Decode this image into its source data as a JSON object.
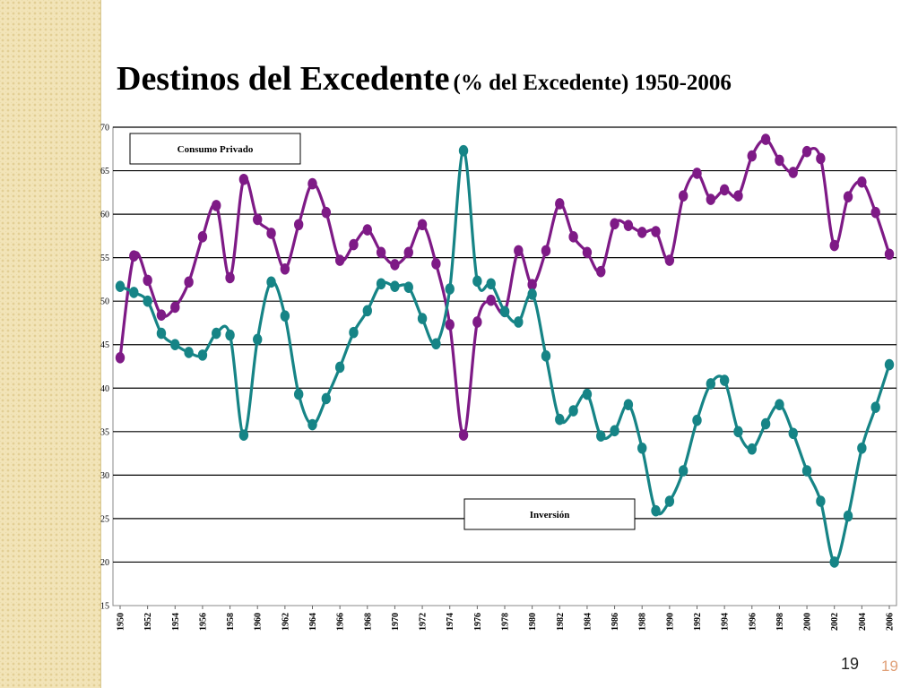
{
  "slide": {
    "title": "Destinos del Excedente",
    "subtitle": "(% del Excedente) 1950-2006",
    "page_number": "19",
    "page_number_corner": "19"
  },
  "colors": {
    "consumo": "#7e1a86",
    "inversion": "#168486",
    "background_strip": "#f2e4b8"
  },
  "chart_data": {
    "type": "line",
    "x": [
      1950,
      1951,
      1952,
      1953,
      1954,
      1955,
      1956,
      1957,
      1958,
      1959,
      1960,
      1961,
      1962,
      1963,
      1964,
      1965,
      1966,
      1967,
      1968,
      1969,
      1970,
      1971,
      1972,
      1973,
      1974,
      1975,
      1976,
      1977,
      1978,
      1979,
      1980,
      1981,
      1982,
      1983,
      1984,
      1985,
      1986,
      1987,
      1988,
      1989,
      1990,
      1991,
      1992,
      1993,
      1994,
      1995,
      1996,
      1997,
      1998,
      1999,
      2000,
      2001,
      2002,
      2003,
      2004,
      2005,
      2006
    ],
    "x_tick_labels": [
      "1950",
      "1952",
      "1954",
      "1956",
      "1958",
      "1960",
      "1962",
      "1964",
      "1966",
      "1968",
      "1970",
      "1972",
      "1974",
      "1976",
      "1978",
      "1980",
      "1982",
      "1984",
      "1986",
      "1988",
      "1990",
      "1992",
      "1994",
      "1996",
      "1998",
      "2000",
      "2002",
      "2004",
      "2006"
    ],
    "y_ticks": [
      "15",
      "20",
      "25",
      "30",
      "35",
      "40",
      "45",
      "50",
      "55",
      "60",
      "65",
      "70"
    ],
    "ylim": [
      15,
      70
    ],
    "grid": "horizontal",
    "series": [
      {
        "name": "Consumo Privado",
        "values": [
          43.5,
          55.2,
          52.4,
          48.4,
          49.3,
          52.2,
          57.4,
          61.0,
          52.7,
          64.0,
          59.4,
          57.8,
          53.7,
          58.8,
          63.5,
          60.2,
          54.7,
          56.5,
          58.2,
          55.6,
          54.2,
          55.6,
          58.8,
          54.3,
          47.3,
          34.6,
          47.6,
          50.1,
          48.8,
          55.8,
          51.9,
          55.8,
          61.2,
          57.4,
          55.6,
          53.4,
          58.9,
          58.7,
          57.9,
          58.0,
          54.7,
          62.1,
          64.7,
          61.7,
          62.8,
          62.1,
          66.7,
          68.6,
          66.2,
          64.8,
          67.2,
          66.4,
          56.4,
          62.0,
          63.7,
          60.2,
          55.4
        ]
      },
      {
        "name": "Inversión",
        "values": [
          51.7,
          51.0,
          50.0,
          46.3,
          45.0,
          44.1,
          43.8,
          46.3,
          46.1,
          34.6,
          45.6,
          52.2,
          48.3,
          39.3,
          35.8,
          38.8,
          42.4,
          46.4,
          48.9,
          52.0,
          51.7,
          51.6,
          48.0,
          45.1,
          51.4,
          67.3,
          52.3,
          52.0,
          48.8,
          47.6,
          50.8,
          43.7,
          36.4,
          37.4,
          39.3,
          34.5,
          35.1,
          38.1,
          33.1,
          25.9,
          27.0,
          30.5,
          36.3,
          40.5,
          40.9,
          35.0,
          33.0,
          35.9,
          38.1,
          34.8,
          30.5,
          27.0,
          20.0,
          25.3,
          33.1,
          37.8,
          42.7
        ]
      }
    ],
    "labels": {
      "consumo": "Consumo Privado",
      "inversion": "Inversión"
    }
  }
}
